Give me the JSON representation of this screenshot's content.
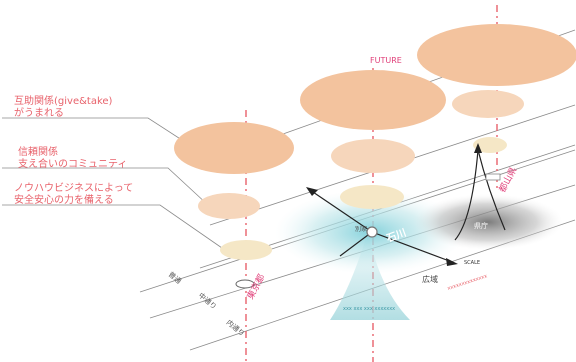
{
  "labels": {
    "future": "FUTURE",
    "note_give_take_1": "互助関係(give&take)",
    "note_give_take_2": "がうまれる",
    "note_trust_1": "信頼関係",
    "note_trust_2": "支え合いのコミュニティ",
    "note_knowhow_1": "ノウハウビジネスによって",
    "note_knowhow_2": "安全安心の力を備える",
    "place_tokyo": "東京都",
    "place_ishikawa": "石川",
    "place_aomori": "都山県",
    "place_hub_small": "別家",
    "place_gray": "県庁",
    "axis_small": "SCALE",
    "wide_area": "広域",
    "street_1": "普通",
    "street_2": "中通り",
    "street_3": "内通り",
    "blue_caption": "xxx xxx xxx xxxxxxx",
    "red_caption": "xxxxxxxxxxxxxx"
  },
  "colors": {
    "ellipse_large": "#f3c39e",
    "ellipse_mid": "#f6d6bb",
    "ellipse_small": "#f5e7c6",
    "red_dash": "#e8626b",
    "future": "#e0407a",
    "teal": "#9fd6dc",
    "gray_cloud": "#9a9a9a",
    "line": "#555555"
  }
}
